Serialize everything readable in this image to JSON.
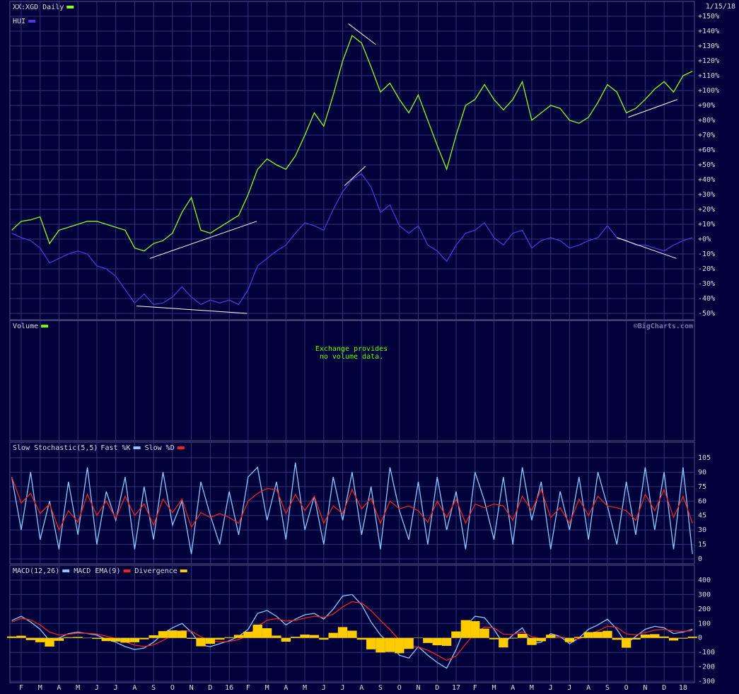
{
  "chart_data": [
    {
      "type": "line",
      "date": "1/15/18",
      "watermark": "©BigCharts.com",
      "ylim": [
        -50,
        150
      ],
      "yticks": [
        {
          "value": -50,
          "label": "-50%"
        },
        {
          "value": -40,
          "label": "-40%"
        },
        {
          "value": -30,
          "label": "-30%"
        },
        {
          "value": -20,
          "label": "-20%"
        },
        {
          "value": -10,
          "label": "-10%"
        },
        {
          "value": 0,
          "label": "+0%"
        },
        {
          "value": 10,
          "label": "+10%"
        },
        {
          "value": 20,
          "label": "+20%"
        },
        {
          "value": 30,
          "label": "+30%"
        },
        {
          "value": 40,
          "label": "+40%"
        },
        {
          "value": 50,
          "label": "+50%"
        },
        {
          "value": 60,
          "label": "+60%"
        },
        {
          "value": 70,
          "label": "+70%"
        },
        {
          "value": 80,
          "label": "+80%"
        },
        {
          "value": 90,
          "label": "+90%"
        },
        {
          "value": 100,
          "label": "+100%"
        },
        {
          "value": 110,
          "label": "+110%"
        },
        {
          "value": 120,
          "label": "+120%"
        },
        {
          "value": 130,
          "label": "+130%"
        },
        {
          "value": 140,
          "label": "+140%"
        },
        {
          "value": 150,
          "label": "+150%"
        }
      ],
      "grid": true,
      "series": [
        {
          "name": "XX:XGD Daily",
          "color": "#88ff22",
          "values": [
            6,
            12,
            13,
            15,
            -3,
            6,
            8,
            10,
            12,
            12,
            10,
            8,
            6,
            -6,
            -8,
            -3,
            -1,
            4,
            18,
            28,
            6,
            4,
            8,
            12,
            16,
            30,
            47,
            54,
            50,
            47,
            56,
            70,
            85,
            76,
            97,
            120,
            137,
            132,
            116,
            99,
            105,
            94,
            85,
            97,
            80,
            63,
            47,
            70,
            90,
            94,
            104,
            94,
            87,
            94,
            106,
            80,
            85,
            90,
            88,
            80,
            78,
            82,
            92,
            104,
            99,
            85,
            88,
            94,
            101,
            106,
            99,
            110,
            113
          ]
        },
        {
          "name": "HUI",
          "color": "#5533dd",
          "values": [
            4,
            1,
            -1,
            -6,
            -16,
            -13,
            -10,
            -8,
            -10,
            -18,
            -20,
            -25,
            -34,
            -43,
            -37,
            -44,
            -43,
            -39,
            -32,
            -39,
            -44,
            -41,
            -43,
            -41,
            -44,
            -34,
            -18,
            -13,
            -8,
            -4,
            4,
            11,
            9,
            6,
            20,
            32,
            40,
            44,
            35,
            18,
            23,
            9,
            4,
            9,
            -4,
            -8,
            -15,
            -4,
            4,
            6,
            11,
            1,
            -4,
            4,
            6,
            -6,
            -1,
            1,
            -1,
            -6,
            -4,
            -1,
            1,
            9,
            1,
            -1,
            -4,
            -4,
            -6,
            -8,
            -4,
            -1,
            1
          ]
        }
      ],
      "trendlines": [
        {
          "x": [
            14.6,
            25.9
          ],
          "y": [
            -13,
            12
          ]
        },
        {
          "x": [
            13.2,
            24.9
          ],
          "y": [
            -45,
            -50
          ]
        },
        {
          "x": [
            35.6,
            38.5
          ],
          "y": [
            145,
            131
          ]
        },
        {
          "x": [
            35.2,
            37.4
          ],
          "y": [
            36,
            49
          ]
        },
        {
          "x": [
            65.2,
            70.4
          ],
          "y": [
            82,
            94
          ]
        },
        {
          "x": [
            64,
            70.3
          ],
          "y": [
            1,
            -13
          ]
        }
      ]
    },
    {
      "type": "volume",
      "title": "Volume",
      "color": "#66ff00",
      "message": [
        "Exchange provides",
        "no volume data."
      ]
    },
    {
      "type": "line",
      "title": "Slow Stochastic(5,5)",
      "ylim": [
        0,
        105
      ],
      "yticks": [
        0,
        15,
        30,
        45,
        60,
        75,
        90,
        105
      ],
      "grid": true,
      "series": [
        {
          "name": "Fast %K",
          "color": "#88ccff",
          "values": [
            85,
            30,
            90,
            20,
            60,
            10,
            80,
            25,
            95,
            15,
            70,
            40,
            85,
            10,
            75,
            20,
            90,
            35,
            60,
            5,
            80,
            45,
            15,
            70,
            25,
            85,
            95,
            40,
            80,
            20,
            100,
            30,
            65,
            15,
            85,
            40,
            90,
            25,
            75,
            10,
            95,
            50,
            20,
            80,
            15,
            85,
            30,
            70,
            10,
            90,
            60,
            20,
            85,
            15,
            95,
            40,
            80,
            10,
            70,
            30,
            85,
            20,
            90,
            55,
            15,
            80,
            25,
            95,
            30,
            90,
            10,
            95,
            5
          ]
        },
        {
          "name": "Slow %D",
          "color": "#ee2222",
          "values": [
            85,
            58,
            68,
            47,
            57,
            30,
            50,
            38,
            67,
            45,
            60,
            42,
            65,
            45,
            57,
            35,
            62,
            48,
            62,
            33,
            48,
            43,
            47,
            43,
            37,
            60,
            68,
            73,
            72,
            47,
            67,
            50,
            65,
            37,
            55,
            47,
            72,
            52,
            63,
            37,
            60,
            52,
            55,
            50,
            38,
            60,
            43,
            62,
            37,
            57,
            53,
            57,
            55,
            40,
            65,
            50,
            72,
            43,
            53,
            37,
            62,
            45,
            65,
            55,
            53,
            50,
            40,
            67,
            50,
            72,
            43,
            65,
            37
          ]
        }
      ]
    },
    {
      "type": "line",
      "ylim": [
        -300,
        400
      ],
      "yticks": [
        -300,
        -200,
        -100,
        0,
        100,
        200,
        300,
        400
      ],
      "grid": true,
      "categories": [
        null,
        "F",
        null,
        "M",
        null,
        "A",
        null,
        "M",
        null,
        "J",
        null,
        "J",
        null,
        "A",
        null,
        "S",
        null,
        "O",
        null,
        "N",
        null,
        "D",
        null,
        "16",
        null,
        "F",
        null,
        "M",
        null,
        "A",
        null,
        "M",
        null,
        "J",
        null,
        "J",
        null,
        "A",
        null,
        "S",
        null,
        "O",
        null,
        "N",
        null,
        "D",
        null,
        "17",
        null,
        "F",
        null,
        "M",
        null,
        "A",
        null,
        "M",
        null,
        "J",
        null,
        "J",
        null,
        "A",
        null,
        "S",
        null,
        "O",
        null,
        "N",
        null,
        "D",
        null,
        "18",
        null
      ],
      "series": [
        {
          "name": "MACD(12,26)",
          "color": "#88ccff",
          "values": [
            120,
            150,
            110,
            60,
            -20,
            0,
            30,
            40,
            30,
            20,
            -10,
            -30,
            -60,
            -80,
            -70,
            -30,
            30,
            70,
            100,
            40,
            -50,
            -60,
            -40,
            -20,
            10,
            60,
            170,
            190,
            150,
            90,
            130,
            160,
            170,
            130,
            200,
            290,
            300,
            230,
            110,
            20,
            -40,
            -120,
            -140,
            -60,
            -120,
            -170,
            -210,
            -80,
            80,
            150,
            140,
            60,
            -40,
            20,
            70,
            -40,
            -30,
            30,
            10,
            -40,
            0,
            60,
            90,
            130,
            60,
            -40,
            10,
            60,
            80,
            70,
            30,
            40,
            60
          ]
        },
        {
          "name": "MACD EMA(9)",
          "color": "#ee2222",
          "values": [
            110,
            135,
            125,
            90,
            40,
            20,
            25,
            33,
            32,
            27,
            12,
            -5,
            -27,
            -50,
            -60,
            -48,
            -17,
            18,
            50,
            46,
            8,
            -19,
            -28,
            -25,
            -11,
            17,
            78,
            123,
            134,
            116,
            122,
            137,
            150,
            142,
            165,
            215,
            250,
            242,
            189,
            121,
            57,
            -14,
            -64,
            -62,
            -85,
            -119,
            -155,
            -125,
            -43,
            34,
            76,
            70,
            26,
            24,
            42,
            9,
            -7,
            8,
            9,
            -11,
            -7,
            20,
            48,
            81,
            73,
            28,
            21,
            37,
            54,
            60,
            48,
            45,
            51
          ]
        },
        {
          "name": "Divergence",
          "color": "#ffcc00",
          "style": "bar",
          "values": [
            10,
            15,
            -15,
            -30,
            -60,
            -20,
            5,
            7,
            -2,
            -7,
            -22,
            -25,
            -33,
            -30,
            -10,
            18,
            47,
            52,
            50,
            -6,
            -58,
            -41,
            -12,
            5,
            21,
            43,
            92,
            67,
            16,
            -26,
            8,
            23,
            20,
            -12,
            35,
            75,
            50,
            -12,
            -79,
            -101,
            -97,
            -106,
            -76,
            2,
            -35,
            -51,
            -55,
            45,
            123,
            116,
            64,
            -10,
            -66,
            -4,
            28,
            -49,
            -23,
            22,
            1,
            -29,
            7,
            40,
            42,
            49,
            -13,
            -68,
            -11,
            23,
            26,
            10,
            -18,
            -5,
            9
          ]
        }
      ]
    }
  ]
}
